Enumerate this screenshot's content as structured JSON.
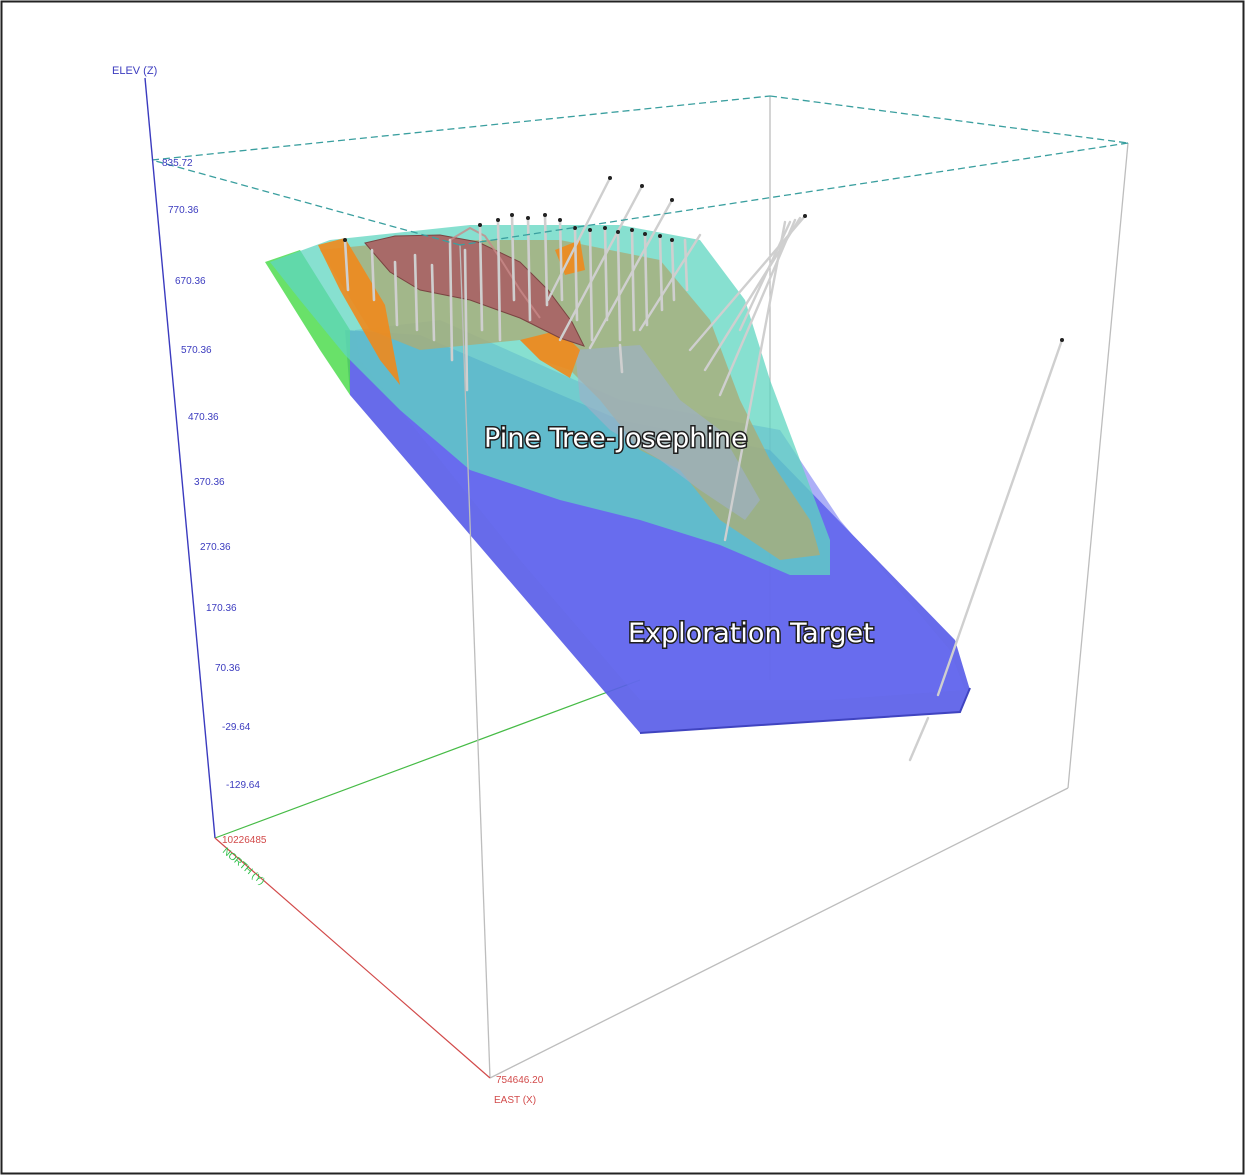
{
  "scene": {
    "z_axis": {
      "title": "ELEV (Z)",
      "ticks": [
        "835.72",
        "770.36",
        "670.36",
        "570.36",
        "470.36",
        "370.36",
        "270.36",
        "170.36",
        "70.36",
        "-29.64",
        "-129.64"
      ]
    },
    "x_axis": {
      "title": "EAST (X)",
      "origin_label": "754646.20"
    },
    "y_axis": {
      "title": "NORTH (Y)",
      "origin_label": "10226485"
    },
    "labels": {
      "deposit": "Pine Tree-Josephine",
      "target": "Exploration Target"
    },
    "colors": {
      "z_axis": "#3b3bbf",
      "x_axis": "#d24a4a",
      "y_axis": "#2fbf4a",
      "top_box": "#3a9f9f",
      "frame": "#b5b5b5",
      "target_body": "#5a5ee8",
      "model_turquoise": "#5fd6c0",
      "model_olive": "#a8ad7a",
      "model_orange": "#f08a1c",
      "model_green": "#4fdc4f",
      "ore_body": "#a86a68",
      "drill_hole": "#d8d8d8"
    }
  }
}
